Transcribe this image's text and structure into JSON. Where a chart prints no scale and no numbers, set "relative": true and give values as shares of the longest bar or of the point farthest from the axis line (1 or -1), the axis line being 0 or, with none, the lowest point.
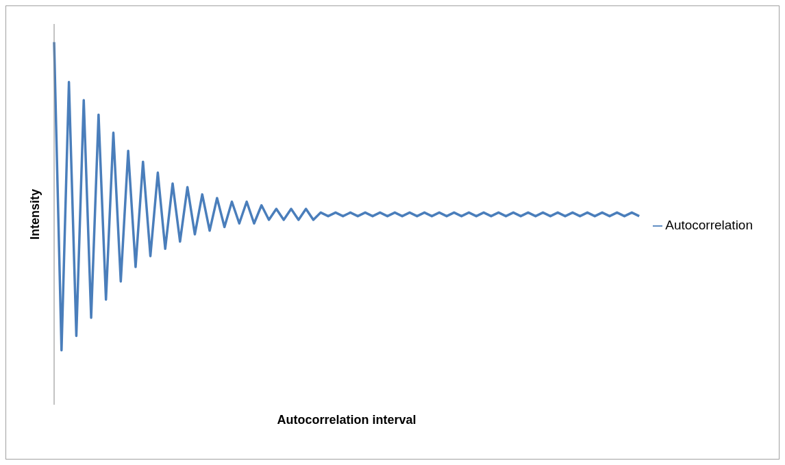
{
  "chart_data": {
    "type": "line",
    "xlabel": "Autocorrelation interval",
    "ylabel": "Intensity",
    "relative": true,
    "legend": "right",
    "grid": false,
    "marker": "none",
    "line_style": "solid",
    "categories": [
      null,
      null,
      null,
      null,
      null,
      null,
      null,
      null,
      null,
      null,
      null,
      null,
      null,
      null,
      null,
      null,
      null,
      null,
      null,
      null,
      null,
      null,
      null,
      null,
      null,
      null,
      null,
      null,
      null,
      null,
      null,
      null,
      null,
      null,
      null,
      null,
      null,
      null,
      null,
      null,
      null,
      null,
      null,
      null,
      null,
      null,
      null,
      null,
      null,
      null,
      null,
      null,
      null,
      null,
      null,
      null,
      null,
      null,
      null,
      null,
      null,
      null,
      null,
      null,
      null,
      null,
      null,
      null,
      null,
      null,
      null,
      null,
      null,
      null,
      null,
      null,
      null,
      null,
      null,
      null
    ],
    "series": [
      {
        "name": "Autocorrelation",
        "color": "#4a7ebb",
        "values": [
          1.0,
          0.15,
          0.89,
          0.19,
          0.84,
          0.24,
          0.8,
          0.29,
          0.75,
          0.34,
          0.7,
          0.38,
          0.67,
          0.41,
          0.64,
          0.43,
          0.61,
          0.45,
          0.6,
          0.47,
          0.58,
          0.48,
          0.57,
          0.49,
          0.56,
          0.5,
          0.56,
          0.5,
          0.55,
          0.51,
          0.54,
          0.51,
          0.54,
          0.51,
          0.54,
          0.51,
          0.53,
          0.52,
          0.53,
          0.52,
          0.53,
          0.52,
          0.53,
          0.52,
          0.53,
          0.52,
          0.53,
          0.52,
          0.53,
          0.52,
          0.53,
          0.52,
          0.53,
          0.52,
          0.53,
          0.52,
          0.53,
          0.52,
          0.53,
          0.52,
          0.53,
          0.52,
          0.53,
          0.52,
          0.53,
          0.52,
          0.53,
          0.52,
          0.53,
          0.52,
          0.53,
          0.52,
          0.53,
          0.52,
          0.53,
          0.52,
          0.53,
          0.52,
          0.53,
          0.52
        ]
      }
    ]
  }
}
